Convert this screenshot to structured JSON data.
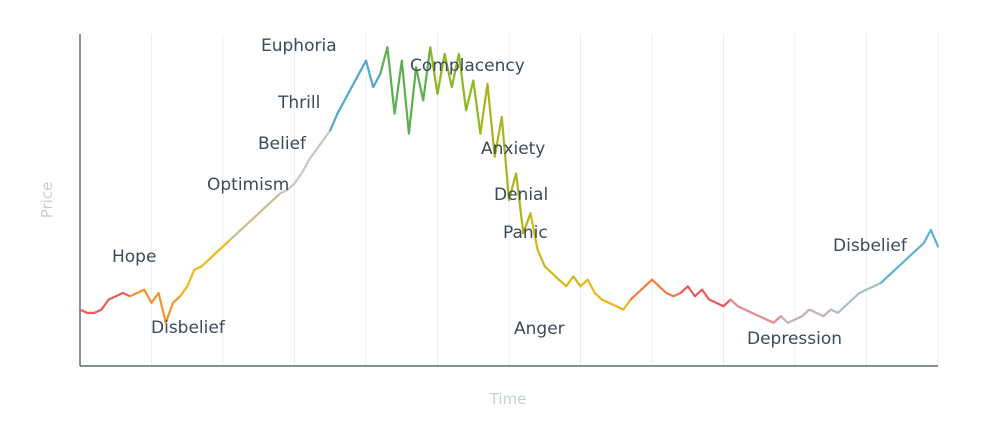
{
  "chart_data": {
    "type": "line",
    "title": "",
    "xlabel": "Time",
    "ylabel": "Price",
    "grid": "vertical",
    "xlim": [
      0,
      120
    ],
    "ylim": [
      0,
      100
    ],
    "series": [
      {
        "x": [
          0,
          1,
          2,
          3,
          4,
          5,
          6,
          7,
          8,
          9,
          10,
          11,
          12,
          13,
          14,
          15,
          16,
          17,
          18,
          19,
          20,
          21,
          22,
          23,
          24,
          25,
          26,
          27,
          28,
          29,
          30,
          31,
          32,
          33,
          34,
          35,
          36,
          37,
          38,
          39,
          40,
          41,
          42,
          43,
          44,
          45,
          46,
          47,
          48,
          49,
          50,
          51,
          52,
          53,
          54,
          55,
          56,
          57,
          58,
          59,
          60,
          61,
          62,
          63,
          64,
          65,
          66,
          67,
          68,
          69,
          70,
          71,
          72,
          73,
          74,
          75,
          76,
          77,
          78,
          79,
          80,
          81,
          82,
          83,
          84,
          85,
          86,
          87,
          88,
          89,
          90,
          91,
          92,
          93,
          94,
          95,
          96,
          97,
          98,
          99,
          100,
          101,
          102,
          103,
          104,
          105,
          106,
          107,
          108,
          109,
          110,
          111,
          112,
          113,
          114,
          115,
          116,
          117,
          118,
          119,
          120
        ],
        "y": [
          17,
          16,
          16,
          17,
          20,
          21,
          22,
          21,
          22,
          23,
          19,
          22,
          13,
          19,
          21,
          24,
          29,
          30,
          32,
          34,
          36,
          38,
          40,
          42,
          44,
          46,
          48,
          50,
          52,
          53,
          55,
          58,
          62,
          65,
          68,
          71,
          76,
          80,
          84,
          88,
          92,
          84,
          88,
          96,
          76,
          92,
          70,
          90,
          80,
          96,
          82,
          94,
          84,
          94,
          77,
          86,
          70,
          85,
          63,
          75,
          50,
          58,
          40,
          46,
          35,
          30,
          28,
          26,
          24,
          27,
          24,
          26,
          22,
          20,
          19,
          18,
          17,
          20,
          22,
          24,
          26,
          24,
          22,
          21,
          22,
          24,
          21,
          23,
          20,
          19,
          18,
          20,
          18,
          17,
          16,
          15,
          14,
          13,
          15,
          13,
          14,
          15,
          17,
          16,
          15,
          17,
          16,
          18,
          20,
          22,
          23,
          24,
          25,
          27,
          29,
          31,
          33,
          35,
          37,
          41,
          36
        ]
      }
    ],
    "annotations": [
      "Disbelief",
      "Hope",
      "Optimism",
      "Belief",
      "Thrill",
      "Euphoria",
      "Complacency",
      "Anxiety",
      "Denial",
      "Panic",
      "Anger",
      "Depression",
      "Disbelief"
    ],
    "line_colors": [
      "#f05a5a",
      "#f5932f",
      "#f2b51c",
      "#c9bd8a",
      "#c5c8ca",
      "#52a8c9",
      "#5aaf4f",
      "#8db91e",
      "#a8b51c",
      "#d2b917",
      "#f0b21c",
      "#f07d3d",
      "#f0545a",
      "#e78b92",
      "#c3b1b7",
      "#a9c0c6",
      "#5fb0d5"
    ],
    "colors": {
      "axis": "#3d4a57",
      "axis_title": "#c6cfd6",
      "grid": "#eceff2",
      "label": "#3d4a57"
    }
  }
}
